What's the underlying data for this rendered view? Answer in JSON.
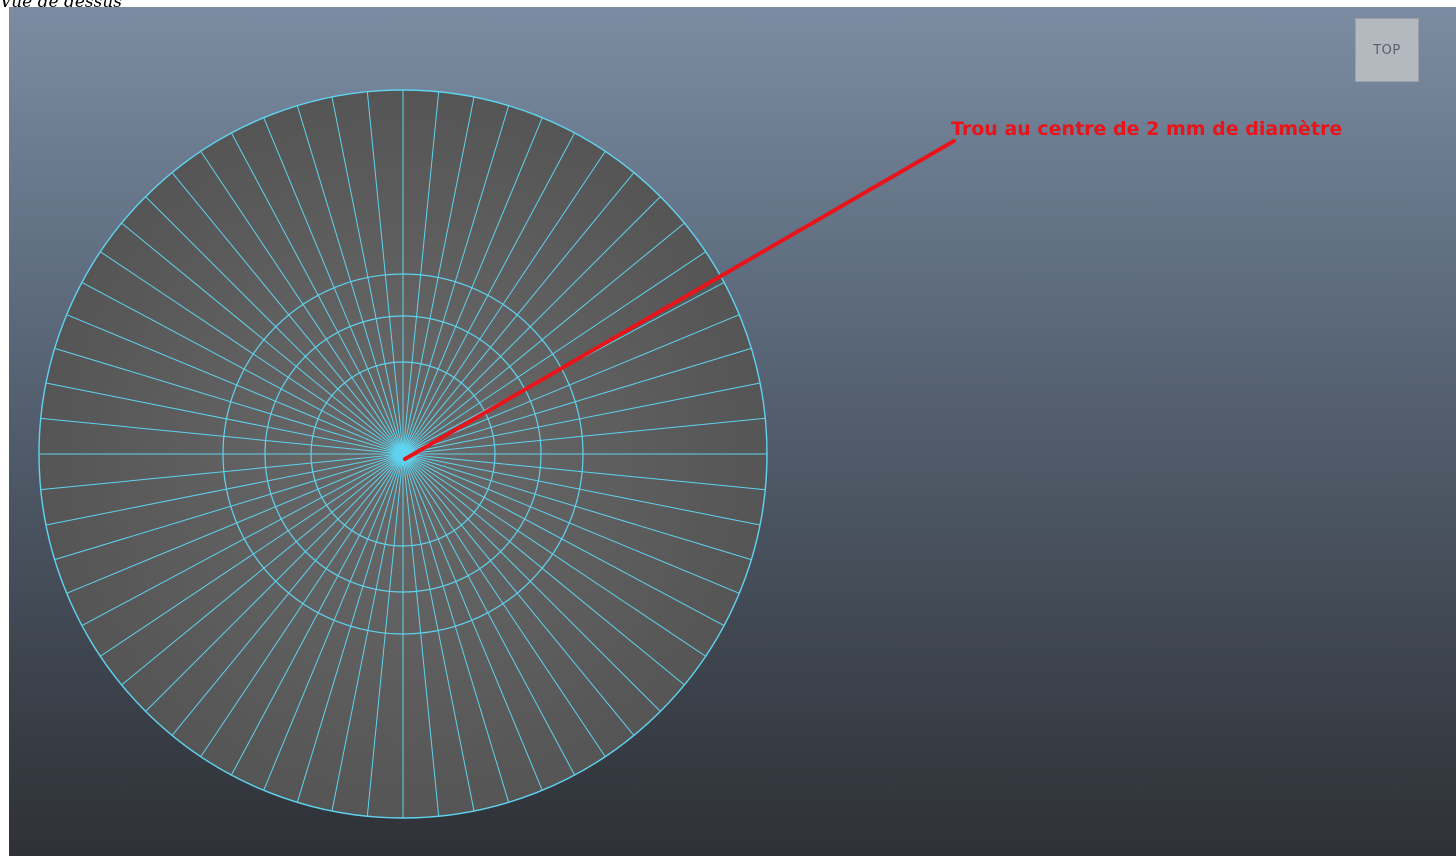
{
  "caption": "Vue de dessus",
  "view_cube_label": "TOP",
  "annotation_text": "Trou au centre de 2 mm de diamètre",
  "colors": {
    "wireframe": "#5fd3ef",
    "mesh_fill": "#585858",
    "annotation": "#e8141a"
  },
  "mesh": {
    "radial_segments": 64,
    "ring_count": 3
  }
}
